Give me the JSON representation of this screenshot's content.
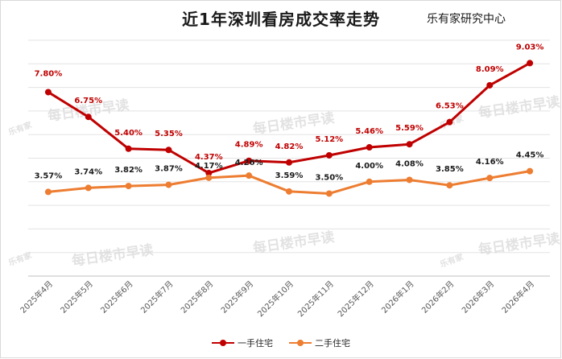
{
  "title": "近1年深圳看房成交率走势",
  "source": "乐有家研究中心",
  "watermark": {
    "text": "每日楼市早读",
    "logo": "乐有家"
  },
  "chart_data": {
    "type": "line",
    "categories": [
      "2025年4月",
      "2025年5月",
      "2025年6月",
      "2025年7月",
      "2025年8月",
      "2025年9月",
      "2025年10月",
      "2025年11月",
      "2025年12月",
      "2026年1月",
      "2026年2月",
      "2026年3月",
      "2026年4月"
    ],
    "series": [
      {
        "name": "一手住宅",
        "color": "#c00000",
        "values": [
          7.8,
          6.75,
          5.4,
          5.35,
          4.37,
          4.89,
          4.82,
          5.12,
          5.46,
          5.59,
          6.53,
          8.09,
          9.03
        ],
        "labels": [
          "7.80%",
          "6.75%",
          "5.40%",
          "5.35%",
          "4.37%",
          "4.89%",
          "4.82%",
          "5.12%",
          "5.46%",
          "5.59%",
          "6.53%",
          "8.09%",
          "9.03%"
        ]
      },
      {
        "name": "二手住宅",
        "color": "#ed7d31",
        "values": [
          3.57,
          3.74,
          3.82,
          3.87,
          4.17,
          4.26,
          3.59,
          3.5,
          4.0,
          4.08,
          3.85,
          4.16,
          4.45
        ],
        "labels": [
          "3.57%",
          "3.74%",
          "3.82%",
          "3.87%",
          "4.17%",
          "4.26%",
          "3.59%",
          "3.50%",
          "4.00%",
          "4.08%",
          "3.85%",
          "4.16%",
          "4.45%"
        ]
      }
    ],
    "ylim": [
      0,
      10
    ],
    "y_axis_visible": false,
    "grid": "horizontal",
    "legend_position": "bottom"
  }
}
